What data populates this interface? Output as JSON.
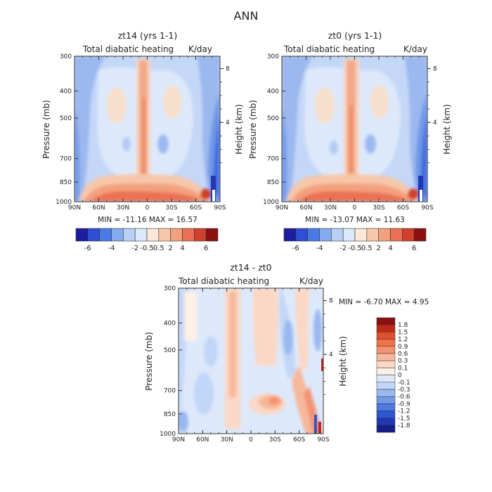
{
  "figure_title": "ANN",
  "panels": [
    {
      "id": "a",
      "title": "zt14 (yrs 1-1)",
      "left_label": "Total diabatic heating",
      "right_label": "K/day",
      "min_max_text": "MIN = -11.16   MAX = 16.57"
    },
    {
      "id": "b",
      "title": "zt0 (yrs 1-1)",
      "left_label": "Total diabatic heating",
      "right_label": "K/day",
      "min_max_text": "MIN = -13.07   MAX = 11.63"
    },
    {
      "id": "c",
      "title": "zt14 - zt0",
      "left_label": "Total diabatic heating",
      "right_label": "K/day",
      "min_max_text": "MIN =   -6.70   MAX =   4.95"
    }
  ],
  "chart_data": [
    {
      "type": "heatmap",
      "title": "zt14 (yrs 1-1)",
      "subtitle": "Total diabatic heating (K/day)",
      "xlabel": "",
      "ylabel": "Pressure (mb)",
      "ylabel_right": "Height (km)",
      "x_ticks": [
        "90N",
        "60N",
        "30N",
        "0",
        "30S",
        "60S",
        "90S"
      ],
      "y_ticks": [
        "300",
        "400",
        "500",
        "700",
        "850",
        "1000"
      ],
      "y_right_ticks": [
        "8",
        "4"
      ],
      "ylim": [
        1000,
        300
      ],
      "min": -11.16,
      "max": 16.57,
      "levels": [
        "-6",
        "-4",
        "-2",
        "-0.5",
        "0.5",
        "2",
        "4",
        "6"
      ]
    },
    {
      "type": "heatmap",
      "title": "zt0 (yrs 1-1)",
      "subtitle": "Total diabatic heating (K/day)",
      "xlabel": "",
      "ylabel": "Pressure (mb)",
      "ylabel_right": "Height (km)",
      "x_ticks": [
        "90N",
        "60N",
        "30N",
        "0",
        "30S",
        "60S",
        "90S"
      ],
      "y_ticks": [
        "300",
        "400",
        "500",
        "700",
        "850",
        "1000"
      ],
      "y_right_ticks": [
        "8",
        "4"
      ],
      "ylim": [
        1000,
        300
      ],
      "min": -13.07,
      "max": 11.63,
      "levels": [
        "-6",
        "-4",
        "-2",
        "-0.5",
        "0.5",
        "2",
        "4",
        "6"
      ]
    },
    {
      "type": "heatmap",
      "title": "zt14 - zt0",
      "subtitle": "Total diabatic heating (K/day)",
      "xlabel": "",
      "ylabel": "Pressure (mb)",
      "ylabel_right": "Height (km)",
      "x_ticks": [
        "90N",
        "60N",
        "30N",
        "0",
        "30S",
        "60S",
        "90S"
      ],
      "y_ticks": [
        "300",
        "400",
        "500",
        "700",
        "850",
        "1000"
      ],
      "y_right_ticks": [
        "8",
        "4"
      ],
      "ylim": [
        1000,
        300
      ],
      "min": -6.7,
      "max": 4.95,
      "levels": [
        "1.8",
        "1.5",
        "1.2",
        "0.9",
        "0.6",
        "0.3",
        "0.1",
        "0",
        "-0.1",
        "-0.3",
        "-0.6",
        "-0.9",
        "-1.2",
        "-1.5",
        "-1.8"
      ]
    }
  ],
  "colors": {
    "top_colorbar": [
      "#1c1c9e",
      "#2e4ed4",
      "#4a7ae6",
      "#86aaf0",
      "#b9cff6",
      "#dde9fb",
      "#fbe8d8",
      "#f7c7aa",
      "#f3a07e",
      "#ea7155",
      "#d0402c",
      "#8b1010"
    ],
    "diff_colorbar": [
      "#8b1010",
      "#c0281a",
      "#e0502f",
      "#f07048",
      "#f39272",
      "#f7b79a",
      "#fbd8c5",
      "#fdf0e6",
      "#dde9fb",
      "#c2d6f7",
      "#9ab8f0",
      "#739ae8",
      "#4e7ae0",
      "#2c56d2",
      "#1f38b4",
      "#141e86"
    ]
  }
}
